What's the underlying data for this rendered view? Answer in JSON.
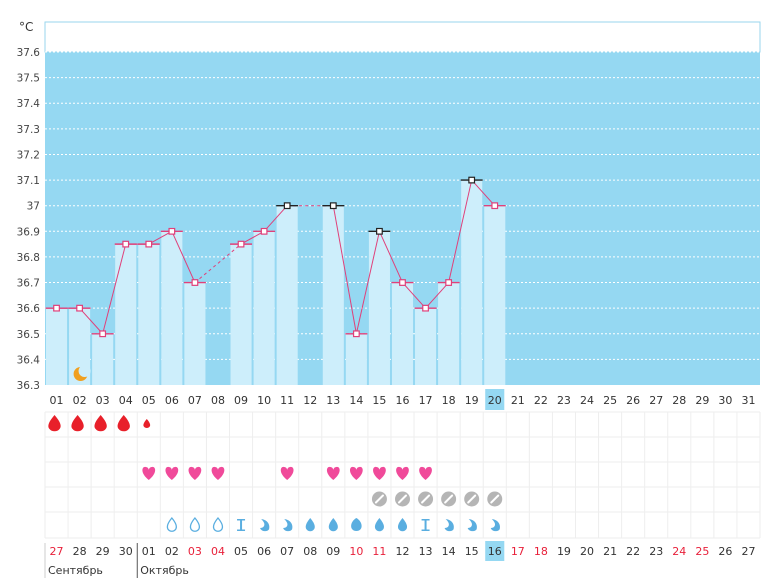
{
  "chart_data": {
    "type": "bar",
    "unit_label": "°C",
    "ylim": [
      36.3,
      37.6
    ],
    "y_ticks": [
      "36.3",
      "36.4",
      "36.5",
      "36.6",
      "36.7",
      "36.8",
      "36.9",
      "37",
      "37.1",
      "37.2",
      "37.3",
      "37.4",
      "37.5",
      "37.6"
    ],
    "day_labels": [
      "01",
      "02",
      "03",
      "04",
      "05",
      "06",
      "07",
      "08",
      "09",
      "10",
      "11",
      "12",
      "13",
      "14",
      "15",
      "16",
      "17",
      "18",
      "19",
      "20",
      "21",
      "22",
      "23",
      "24",
      "25",
      "26",
      "27",
      "28",
      "29",
      "30",
      "31"
    ],
    "highlight_day_index": 19,
    "values": [
      36.6,
      36.6,
      36.5,
      36.85,
      36.85,
      36.9,
      36.7,
      null,
      36.85,
      36.9,
      37.0,
      null,
      37.0,
      36.5,
      36.9,
      36.7,
      36.6,
      36.7,
      37.1,
      37.0,
      null,
      null,
      null,
      null,
      null,
      null,
      null,
      null,
      null,
      null,
      null
    ],
    "dashed_segments": [
      [
        6,
        8
      ],
      [
        10,
        12
      ]
    ],
    "marker_styles": [
      "pink",
      "pink",
      "pink",
      "pink",
      "pink",
      "pink",
      "pink",
      null,
      "pink",
      "pink",
      "black",
      null,
      "black",
      "pink",
      "black",
      "pink",
      "pink",
      "pink",
      "black",
      "pink",
      null,
      null,
      null,
      null,
      null,
      null,
      null,
      null,
      null,
      null,
      null
    ],
    "moon_day_index": 1,
    "legend_rows": {
      "blood_drops": [
        {
          "day_index": 0,
          "size": "large"
        },
        {
          "day_index": 1,
          "size": "large"
        },
        {
          "day_index": 2,
          "size": "large"
        },
        {
          "day_index": 3,
          "size": "large"
        },
        {
          "day_index": 4,
          "size": "small"
        }
      ],
      "hearts": [
        4,
        5,
        6,
        7,
        10,
        12,
        13,
        14,
        15,
        16
      ],
      "pill_circles": [
        14,
        15,
        16,
        17,
        18,
        19
      ],
      "mucus_icons": [
        {
          "day_index": 5,
          "icon": "drop-outline-icon"
        },
        {
          "day_index": 6,
          "icon": "drop-outline-icon"
        },
        {
          "day_index": 7,
          "icon": "drop-outline-icon"
        },
        {
          "day_index": 8,
          "icon": "hourglass-icon"
        },
        {
          "day_index": 9,
          "icon": "curl-icon"
        },
        {
          "day_index": 10,
          "icon": "curl-icon"
        },
        {
          "day_index": 11,
          "icon": "drop-icon"
        },
        {
          "day_index": 12,
          "icon": "drop-icon"
        },
        {
          "day_index": 13,
          "icon": "blob-icon"
        },
        {
          "day_index": 14,
          "icon": "drop-icon"
        },
        {
          "day_index": 15,
          "icon": "drop-icon"
        },
        {
          "day_index": 16,
          "icon": "hourglass-icon"
        },
        {
          "day_index": 17,
          "icon": "curl-icon"
        },
        {
          "day_index": 18,
          "icon": "curl-icon"
        },
        {
          "day_index": 19,
          "icon": "curl-icon"
        }
      ]
    },
    "date_row": [
      {
        "text": "27",
        "red": true
      },
      {
        "text": "28",
        "red": false
      },
      {
        "text": "29",
        "red": false
      },
      {
        "text": "30",
        "red": false
      },
      {
        "text": "01",
        "red": false
      },
      {
        "text": "02",
        "red": false
      },
      {
        "text": "03",
        "red": true
      },
      {
        "text": "04",
        "red": true
      },
      {
        "text": "05",
        "red": false
      },
      {
        "text": "06",
        "red": false
      },
      {
        "text": "07",
        "red": false
      },
      {
        "text": "08",
        "red": false
      },
      {
        "text": "09",
        "red": false
      },
      {
        "text": "10",
        "red": true
      },
      {
        "text": "11",
        "red": true
      },
      {
        "text": "12",
        "red": false
      },
      {
        "text": "13",
        "red": false
      },
      {
        "text": "14",
        "red": false
      },
      {
        "text": "15",
        "red": false
      },
      {
        "text": "16",
        "red": false,
        "highlight": true
      },
      {
        "text": "17",
        "red": true
      },
      {
        "text": "18",
        "red": true
      },
      {
        "text": "19",
        "red": false
      },
      {
        "text": "20",
        "red": false
      },
      {
        "text": "21",
        "red": false
      },
      {
        "text": "22",
        "red": false
      },
      {
        "text": "23",
        "red": false
      },
      {
        "text": "24",
        "red": true
      },
      {
        "text": "25",
        "red": true
      },
      {
        "text": "26",
        "red": false
      },
      {
        "text": "27",
        "red": false
      }
    ],
    "months": [
      {
        "label": "Сентябрь",
        "start_index": 0
      },
      {
        "label": "Октябрь",
        "start_index": 4
      }
    ]
  },
  "colors": {
    "plot_bg": "#95d8f2",
    "bar_fill": "#cdeefb",
    "line": "#e0407a",
    "marker_pink": "#e0407a",
    "marker_black": "#222222",
    "blood": "#e8202a",
    "heart": "#f04a9a",
    "pill": "#b5b5b5",
    "mucus": "#5aaee0",
    "moon": "#f0a020",
    "red_text": "#e8203a",
    "highlight": "#95d8f2",
    "grid_light": "#eeeeee"
  }
}
